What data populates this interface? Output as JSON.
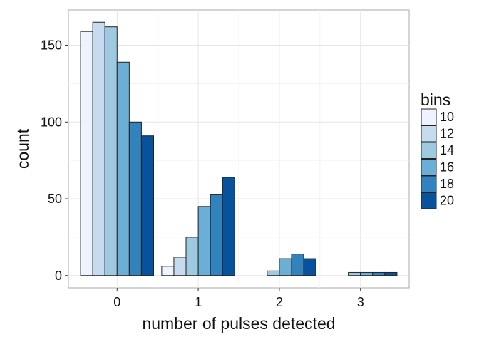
{
  "chart_data": {
    "type": "bar",
    "xlabel": "number of pulses detected",
    "ylabel": "count",
    "categories": [
      "0",
      "1",
      "2",
      "3"
    ],
    "ylim": [
      -8,
      173
    ],
    "yticks": [
      0,
      50,
      100,
      150
    ],
    "grid": true,
    "legend": {
      "title": "bins",
      "position": "right"
    },
    "series": [
      {
        "name": "10",
        "color": "#eff3ff",
        "values": [
          159,
          6,
          0,
          0
        ]
      },
      {
        "name": "12",
        "color": "#c6dbef",
        "values": [
          165,
          12,
          0,
          0
        ]
      },
      {
        "name": "14",
        "color": "#9ecae1",
        "values": [
          162,
          25,
          3,
          2
        ]
      },
      {
        "name": "16",
        "color": "#6baed6",
        "values": [
          139,
          45,
          11,
          2
        ]
      },
      {
        "name": "18",
        "color": "#3182bd",
        "values": [
          100,
          53,
          14,
          2
        ]
      },
      {
        "name": "20",
        "color": "#08519c",
        "values": [
          91,
          64,
          11,
          2
        ]
      }
    ]
  }
}
